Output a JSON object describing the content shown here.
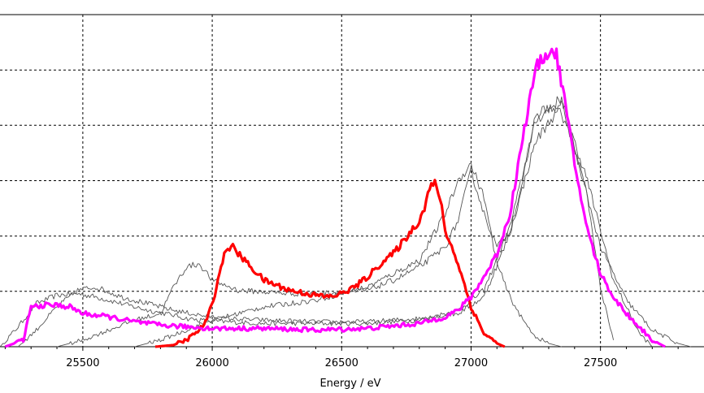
{
  "chart_data": {
    "type": "line",
    "title": "",
    "xlabel": "Energy / eV",
    "ylabel": "",
    "xlim": [
      25180,
      27900
    ],
    "ylim": [
      0,
      1.0
    ],
    "x_ticks": [
      25500,
      26000,
      26500,
      27000,
      27500
    ],
    "x_tick_labels": [
      "25500",
      "26000",
      "26500",
      "27000",
      "27500"
    ],
    "y_gridlines": [
      0.167,
      0.333,
      0.5,
      0.667,
      0.833,
      1.0
    ],
    "grid": "dashed",
    "legend": "none",
    "series": [
      {
        "color": "#555555",
        "width": 0.9,
        "x": [
          25180,
          25250,
          25320,
          25400,
          25480,
          25550,
          25650,
          25750,
          25850,
          25900,
          25950,
          26050,
          26200,
          26400,
          26600,
          26800,
          26950,
          27050,
          27150,
          27250,
          27350,
          27450,
          27500,
          27550
        ],
        "y": [
          0.0,
          0.06,
          0.13,
          0.155,
          0.16,
          0.15,
          0.13,
          0.11,
          0.095,
          0.085,
          0.08,
          0.075,
          0.07,
          0.07,
          0.07,
          0.08,
          0.11,
          0.17,
          0.36,
          0.68,
          0.75,
          0.45,
          0.18,
          0.02
        ]
      },
      {
        "color": "#555555",
        "width": 0.9,
        "x": [
          25250,
          25320,
          25400,
          25480,
          25550,
          25650,
          25750,
          25850,
          25950,
          26050,
          26200,
          26400,
          26600,
          26800,
          26950,
          27050,
          27150,
          27250,
          27350,
          27450,
          27550,
          27650,
          27700
        ],
        "y": [
          0.0,
          0.05,
          0.12,
          0.17,
          0.18,
          0.15,
          0.13,
          0.11,
          0.095,
          0.085,
          0.08,
          0.075,
          0.075,
          0.085,
          0.1,
          0.15,
          0.34,
          0.62,
          0.73,
          0.5,
          0.2,
          0.04,
          0.0
        ]
      },
      {
        "color": "#555555",
        "width": 0.9,
        "x": [
          25400,
          25500,
          25600,
          25700,
          25800,
          25850,
          25900,
          25950,
          26000,
          26100,
          26200,
          26300,
          26400,
          26500,
          26600,
          26700,
          26800,
          26900,
          26950,
          27000,
          27050,
          27100,
          27150,
          27200,
          27250,
          27300,
          27350,
          27400,
          27450,
          27500,
          27600,
          27700,
          27800,
          27850
        ],
        "y": [
          0.0,
          0.02,
          0.05,
          0.08,
          0.1,
          0.18,
          0.24,
          0.25,
          0.2,
          0.17,
          0.165,
          0.16,
          0.16,
          0.165,
          0.17,
          0.2,
          0.24,
          0.3,
          0.38,
          0.53,
          0.4,
          0.3,
          0.35,
          0.5,
          0.7,
          0.72,
          0.7,
          0.6,
          0.45,
          0.3,
          0.14,
          0.05,
          0.01,
          0.0
        ]
      },
      {
        "color": "#555555",
        "width": 0.9,
        "x": [
          25700,
          25800,
          25900,
          26000,
          26100,
          26200,
          26300,
          26400,
          26500,
          26600,
          26700,
          26800,
          26900,
          26950,
          27000,
          27050,
          27100,
          27150,
          27200,
          27250,
          27300,
          27350
        ],
        "y": [
          0.0,
          0.02,
          0.05,
          0.08,
          0.1,
          0.12,
          0.13,
          0.14,
          0.16,
          0.18,
          0.22,
          0.26,
          0.4,
          0.5,
          0.55,
          0.45,
          0.25,
          0.15,
          0.08,
          0.03,
          0.01,
          0.0
        ]
      },
      {
        "color": "#ff0000",
        "width": 3.2,
        "x": [
          25780,
          25850,
          25900,
          25950,
          25980,
          26010,
          26040,
          26060,
          26080,
          26100,
          26150,
          26200,
          26300,
          26400,
          26450,
          26500,
          26550,
          26600,
          26650,
          26700,
          26750,
          26800,
          26820,
          26840,
          26860,
          26880,
          26900,
          26950,
          27000,
          27050,
          27100,
          27130
        ],
        "y": [
          0.0,
          0.005,
          0.02,
          0.05,
          0.08,
          0.16,
          0.26,
          0.3,
          0.3,
          0.28,
          0.24,
          0.2,
          0.17,
          0.155,
          0.15,
          0.16,
          0.18,
          0.21,
          0.25,
          0.28,
          0.33,
          0.38,
          0.42,
          0.48,
          0.49,
          0.45,
          0.35,
          0.25,
          0.12,
          0.04,
          0.01,
          0.0
        ]
      },
      {
        "color": "#ff00ff",
        "width": 3.2,
        "x": [
          25200,
          25270,
          25300,
          25350,
          25400,
          25450,
          25500,
          25600,
          25700,
          25800,
          25900,
          26000,
          26200,
          26400,
          26600,
          26800,
          26900,
          26950,
          27000,
          27050,
          27100,
          27150,
          27200,
          27250,
          27300,
          27330,
          27360,
          27400,
          27450,
          27500,
          27550,
          27600,
          27650,
          27700,
          27750
        ],
        "y": [
          0.0,
          0.02,
          0.12,
          0.125,
          0.125,
          0.12,
          0.1,
          0.09,
          0.075,
          0.065,
          0.06,
          0.055,
          0.055,
          0.05,
          0.055,
          0.07,
          0.09,
          0.11,
          0.15,
          0.21,
          0.28,
          0.4,
          0.63,
          0.84,
          0.89,
          0.88,
          0.75,
          0.55,
          0.35,
          0.22,
          0.15,
          0.1,
          0.06,
          0.02,
          0.0
        ]
      }
    ]
  }
}
